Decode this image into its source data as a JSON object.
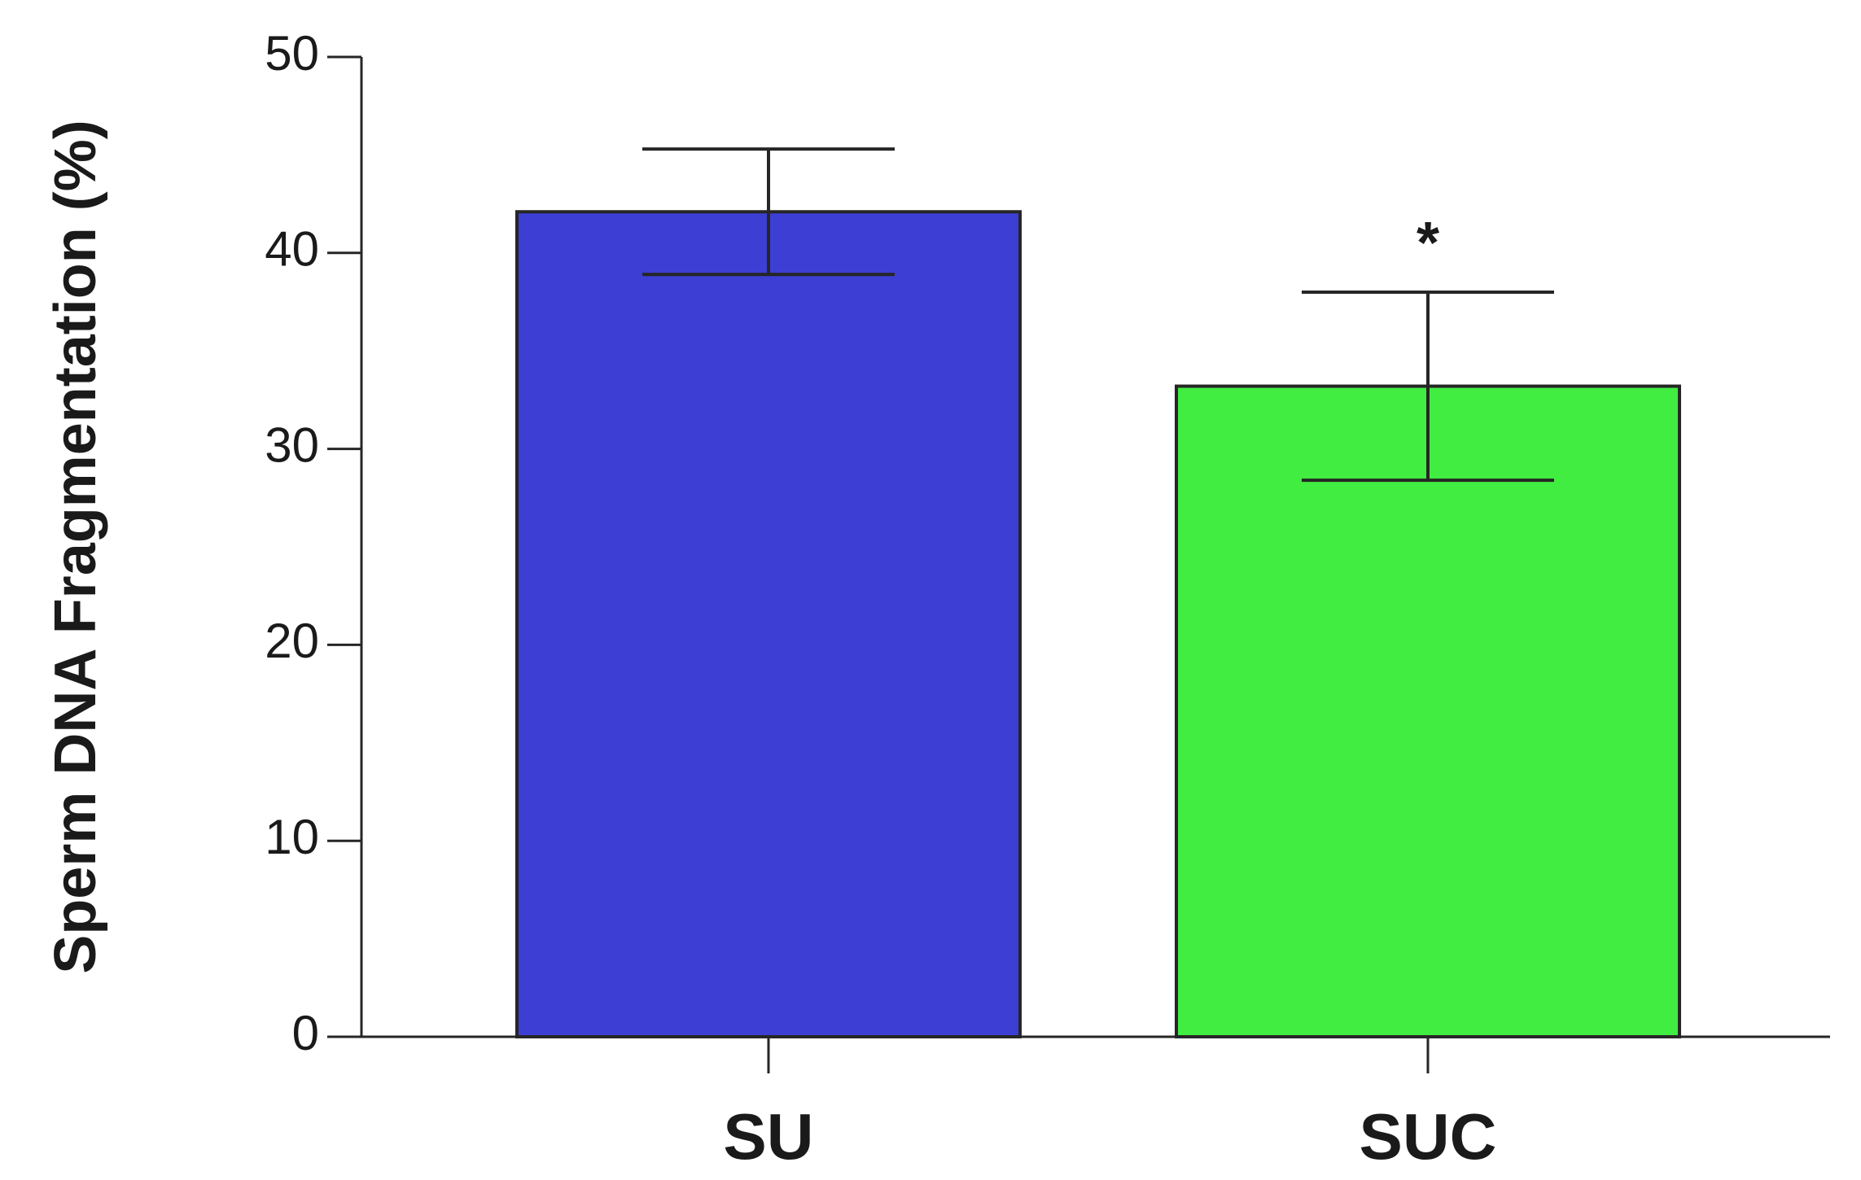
{
  "chart_data": {
    "type": "bar",
    "categories": [
      "SU",
      "SUC"
    ],
    "values": [
      42.1,
      33.2
    ],
    "errors": [
      3.2,
      4.8
    ],
    "ylabel": "Sperm DNA Fragmentation (%)",
    "xlabel": "",
    "ylim": [
      0,
      50
    ],
    "yticks": [
      0,
      10,
      20,
      30,
      40,
      50
    ],
    "bar_colors": [
      "#3d3fd4",
      "#41ed41"
    ],
    "annotations": [
      {
        "category": "SUC",
        "text": "*"
      }
    ],
    "grid": false,
    "legend": "none"
  }
}
